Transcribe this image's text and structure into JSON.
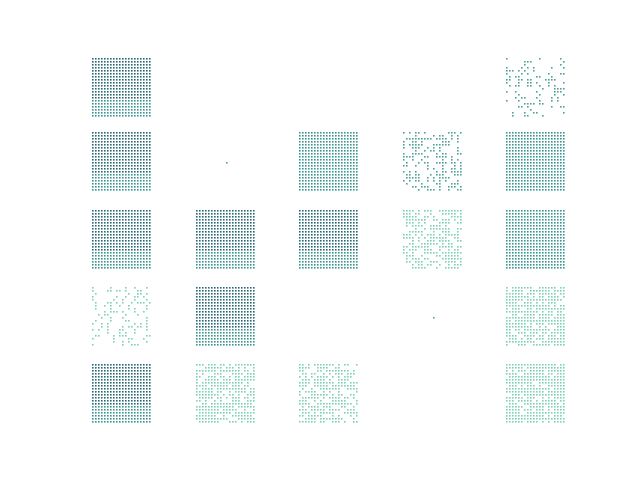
{
  "chart_data": {
    "type": "heatmap",
    "subplot_grid": {
      "rows": 5,
      "cols": 5
    },
    "cell_grid": {
      "rows": 10,
      "cols": 10
    },
    "axes_visible": false,
    "grid": false,
    "legend": "none",
    "colors": {
      "dark": "#1f5f6f",
      "mid": "#2f8f8a",
      "light": "#66c9a6"
    },
    "panels": [
      {
        "id": "r1c1",
        "density": 1.0,
        "pattern": "full",
        "tone": "dark"
      },
      {
        "id": "r1c2",
        "density": 0.0,
        "pattern": "empty",
        "tone": "dark"
      },
      {
        "id": "r1c3",
        "density": 0.0,
        "pattern": "empty",
        "tone": "dark"
      },
      {
        "id": "r1c4",
        "density": 0.0,
        "pattern": "empty",
        "tone": "dark"
      },
      {
        "id": "r1c5",
        "density": 0.25,
        "pattern": "sparse",
        "tone": "mid"
      },
      {
        "id": "r2c1",
        "density": 1.0,
        "pattern": "full",
        "tone": "dark"
      },
      {
        "id": "r2c2",
        "density": 0.01,
        "pattern": "trace",
        "tone": "mid"
      },
      {
        "id": "r2c3",
        "density": 1.0,
        "pattern": "full",
        "tone": "mid"
      },
      {
        "id": "r2c4",
        "density": 0.45,
        "pattern": "sparse",
        "tone": "mid"
      },
      {
        "id": "r2c5",
        "density": 1.0,
        "pattern": "full",
        "tone": "mid"
      },
      {
        "id": "r3c1",
        "density": 1.0,
        "pattern": "full",
        "tone": "dark"
      },
      {
        "id": "r3c2",
        "density": 1.0,
        "pattern": "full",
        "tone": "dark"
      },
      {
        "id": "r3c3",
        "density": 1.0,
        "pattern": "full",
        "tone": "dark"
      },
      {
        "id": "r3c4",
        "density": 0.6,
        "pattern": "sparse",
        "tone": "light"
      },
      {
        "id": "r3c5",
        "density": 1.0,
        "pattern": "full",
        "tone": "mid"
      },
      {
        "id": "r4c1",
        "density": 0.3,
        "pattern": "sparse",
        "tone": "light"
      },
      {
        "id": "r4c2",
        "density": 1.0,
        "pattern": "full",
        "tone": "dark"
      },
      {
        "id": "r4c3",
        "density": 0.0,
        "pattern": "empty",
        "tone": "dark"
      },
      {
        "id": "r4c4",
        "density": 0.01,
        "pattern": "trace",
        "tone": "mid"
      },
      {
        "id": "r4c5",
        "density": 0.8,
        "pattern": "sparse",
        "tone": "light"
      },
      {
        "id": "r5c1",
        "density": 1.0,
        "pattern": "full",
        "tone": "dark"
      },
      {
        "id": "r5c2",
        "density": 0.75,
        "pattern": "sparse",
        "tone": "light"
      },
      {
        "id": "r5c3",
        "density": 0.65,
        "pattern": "sparse",
        "tone": "light"
      },
      {
        "id": "r5c4",
        "density": 0.0,
        "pattern": "empty",
        "tone": "dark"
      },
      {
        "id": "r5c5",
        "density": 0.85,
        "pattern": "sparse",
        "tone": "light"
      }
    ]
  }
}
